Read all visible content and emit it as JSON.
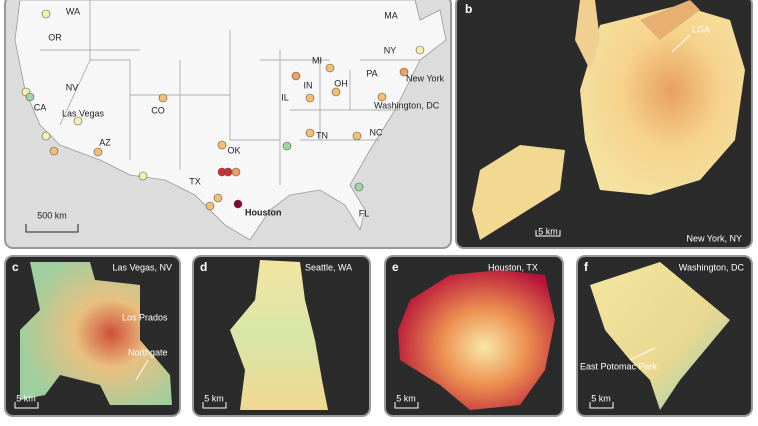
{
  "panels": {
    "a": {
      "state_labels": [
        "WA",
        "OR",
        "CA",
        "NV",
        "AZ",
        "CO",
        "TX",
        "OK",
        "IL",
        "IN",
        "MI",
        "OH",
        "PA",
        "NY",
        "MA",
        "TN",
        "NC",
        "FL"
      ],
      "city_labels": [
        "Las Vegas",
        "Houston",
        "New York",
        "Washington, DC"
      ],
      "scale": "500 km"
    },
    "b": {
      "letter": "b",
      "title": "New York, NY",
      "annotations": [
        "LGA"
      ],
      "scale": "5 km"
    },
    "c": {
      "letter": "c",
      "title": "Las Vegas, NV",
      "annotations": [
        "Los Prados",
        "Northgate"
      ],
      "scale": "5 km"
    },
    "d": {
      "letter": "d",
      "title": "Seattle, WA",
      "scale": "5 km"
    },
    "e": {
      "letter": "e",
      "title": "Houston, TX",
      "scale": "5 km"
    },
    "f": {
      "letter": "f",
      "title": "Washington, DC",
      "annotations": [
        "East Potomac Park"
      ],
      "scale": "5 km"
    }
  }
}
